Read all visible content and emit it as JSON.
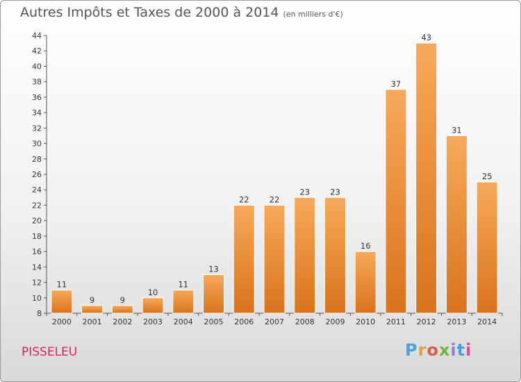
{
  "title": "Autres Impôts et Taxes de 2000 à 2014",
  "unit": "(en milliers d'€)",
  "commune": "PISSELEU",
  "logo_text": "Proxiti",
  "colors": {
    "bar_top": "#f7a95a",
    "bar_bottom": "#d9731c",
    "commune": "#d8245a"
  },
  "chart_data": {
    "type": "bar",
    "title": "Autres Impôts et Taxes de 2000 à 2014",
    "categories": [
      "2000",
      "2001",
      "2002",
      "2003",
      "2004",
      "2005",
      "2006",
      "2007",
      "2008",
      "2009",
      "2010",
      "2011",
      "2012",
      "2013",
      "2014"
    ],
    "values": [
      11,
      9,
      9,
      10,
      11,
      13,
      22,
      22,
      23,
      23,
      16,
      37,
      43,
      31,
      25
    ],
    "ylim": [
      8,
      44
    ],
    "yticks": [
      8,
      10,
      12,
      14,
      16,
      18,
      20,
      22,
      24,
      26,
      28,
      30,
      32,
      34,
      36,
      38,
      40,
      42,
      44
    ],
    "grid": false,
    "xlabel": "",
    "ylabel": ""
  }
}
